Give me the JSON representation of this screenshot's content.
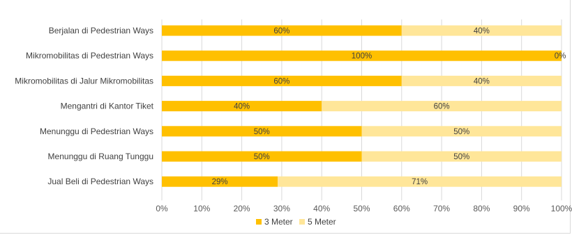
{
  "chart_data": {
    "type": "bar",
    "orientation": "horizontal",
    "stacked": "percent",
    "categories": [
      "Berjalan di Pedestrian Ways",
      "Mikromobilitas di Pedestrian Ways",
      "Mikromobilitas di Jalur Mikromobilitas",
      "Mengantri di Kantor Tiket",
      "Menunggu di Pedestrian Ways",
      "Menunggu di Ruang Tunggu",
      "Jual Beli di Pedestrian Ways"
    ],
    "series": [
      {
        "name": "3 Meter",
        "color": "#FFC000",
        "values": [
          60,
          100,
          60,
          40,
          50,
          50,
          29
        ],
        "labels": [
          "60%",
          "100%",
          "60%",
          "40%",
          "50%",
          "50%",
          "29%"
        ]
      },
      {
        "name": "5 Meter",
        "color": "#FFE699",
        "values": [
          40,
          0,
          40,
          60,
          50,
          50,
          71
        ],
        "labels": [
          "40%",
          "0%",
          "40%",
          "60%",
          "50%",
          "50%",
          "71%"
        ]
      }
    ],
    "xlim": [
      0,
      100
    ],
    "x_ticks": [
      "0%",
      "10%",
      "20%",
      "30%",
      "40%",
      "50%",
      "60%",
      "70%",
      "80%",
      "90%",
      "100%"
    ],
    "grid": true,
    "legend_position": "bottom",
    "title": "",
    "xlabel": "",
    "ylabel": ""
  }
}
